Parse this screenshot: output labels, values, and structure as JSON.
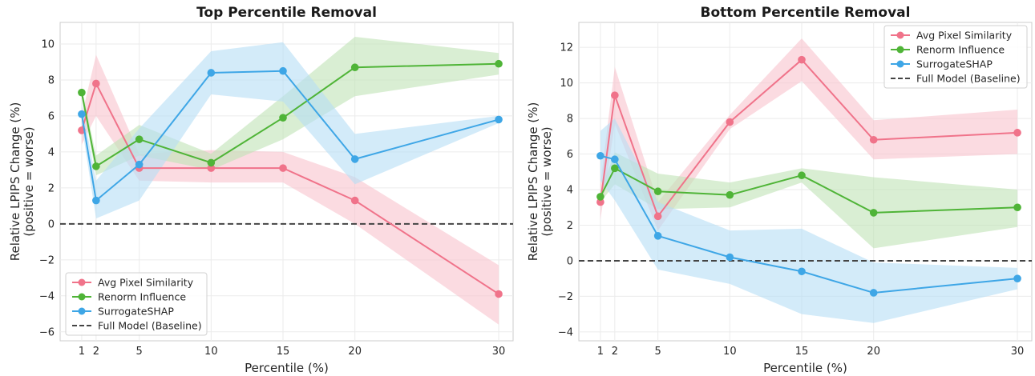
{
  "chart_data": [
    {
      "type": "line",
      "title": "Top Percentile Removal",
      "xlabel": "Percentile (%)",
      "ylabel": [
        "Relative LPIPS Change (%)",
        "(positive = worse)"
      ],
      "x": [
        1,
        2,
        5,
        10,
        15,
        20,
        30
      ],
      "xlim": [
        -0.5,
        31
      ],
      "ylim": [
        -6.5,
        11.2
      ],
      "xticks": [
        1,
        2,
        5,
        10,
        15,
        20,
        30
      ],
      "yticks": [
        -6,
        -4,
        -2,
        0,
        2,
        4,
        6,
        8,
        10
      ],
      "grid": true,
      "legend": "lower-left",
      "baseline": {
        "name": "Full Model (Baseline)",
        "value": 0,
        "color": "#444444"
      },
      "series": [
        {
          "name": "Avg Pixel Similarity",
          "color": "#f0738a",
          "fill": "#f9c3cd",
          "values": [
            5.2,
            7.8,
            3.1,
            3.1,
            3.1,
            1.3,
            -3.9
          ],
          "lower": [
            4.4,
            6.0,
            2.4,
            2.3,
            2.3,
            0.0,
            -5.6
          ],
          "upper": [
            6.0,
            9.4,
            3.9,
            4.1,
            4.0,
            2.6,
            -2.3
          ]
        },
        {
          "name": "Renorm Influence",
          "color": "#4fb437",
          "fill": "#bfe2b5",
          "values": [
            7.3,
            3.2,
            4.7,
            3.4,
            5.9,
            8.7,
            8.9
          ],
          "lower": [
            7.0,
            2.7,
            3.8,
            3.0,
            4.7,
            7.1,
            8.3
          ],
          "upper": [
            7.6,
            3.8,
            5.5,
            3.9,
            7.1,
            10.4,
            9.5
          ]
        },
        {
          "name": "SurrogateSHAP",
          "color": "#3ea6e6",
          "fill": "#b6ddf5",
          "values": [
            6.1,
            1.3,
            3.3,
            8.4,
            8.5,
            3.6,
            5.8
          ],
          "lower": [
            5.5,
            0.3,
            1.3,
            7.2,
            6.8,
            2.2,
            5.6
          ],
          "upper": [
            6.7,
            2.4,
            5.3,
            9.6,
            10.1,
            5.0,
            6.0
          ]
        }
      ]
    },
    {
      "type": "line",
      "title": "Bottom Percentile Removal",
      "xlabel": "Percentile (%)",
      "ylabel": [
        "Relative LPIPS Change (%)",
        "(positive = worse)"
      ],
      "x": [
        1,
        2,
        5,
        10,
        15,
        20,
        30
      ],
      "xlim": [
        -0.5,
        31
      ],
      "ylim": [
        -4.5,
        13.4
      ],
      "xticks": [
        1,
        2,
        5,
        10,
        15,
        20,
        30
      ],
      "yticks": [
        -4,
        -2,
        0,
        2,
        4,
        6,
        8,
        10,
        12
      ],
      "grid": true,
      "legend": "top-right",
      "baseline": {
        "name": "Full Model (Baseline)",
        "value": 0,
        "color": "#444444"
      },
      "series": [
        {
          "name": "Avg Pixel Similarity",
          "color": "#f0738a",
          "fill": "#f9c3cd",
          "values": [
            3.3,
            9.3,
            2.5,
            7.8,
            11.3,
            6.8,
            7.2
          ],
          "lower": [
            2.3,
            7.7,
            1.7,
            7.4,
            10.1,
            5.7,
            6.0
          ],
          "upper": [
            4.3,
            10.9,
            3.3,
            8.2,
            12.5,
            7.9,
            8.5
          ]
        },
        {
          "name": "Renorm Influence",
          "color": "#4fb437",
          "fill": "#bfe2b5",
          "values": [
            3.6,
            5.2,
            3.9,
            3.7,
            4.8,
            2.7,
            3.0
          ],
          "lower": [
            3.3,
            4.3,
            2.9,
            3.0,
            4.4,
            0.7,
            1.9
          ],
          "upper": [
            3.9,
            6.1,
            4.9,
            4.4,
            5.2,
            4.7,
            4.0
          ]
        },
        {
          "name": "SurrogateSHAP",
          "color": "#3ea6e6",
          "fill": "#b6ddf5",
          "values": [
            5.9,
            5.7,
            1.4,
            0.2,
            -0.6,
            -1.8,
            -1.0
          ],
          "lower": [
            4.5,
            3.4,
            -0.5,
            -1.3,
            -3.0,
            -3.5,
            -1.6
          ],
          "upper": [
            7.3,
            8.0,
            3.3,
            1.7,
            1.8,
            -0.1,
            -0.4
          ]
        }
      ]
    }
  ]
}
